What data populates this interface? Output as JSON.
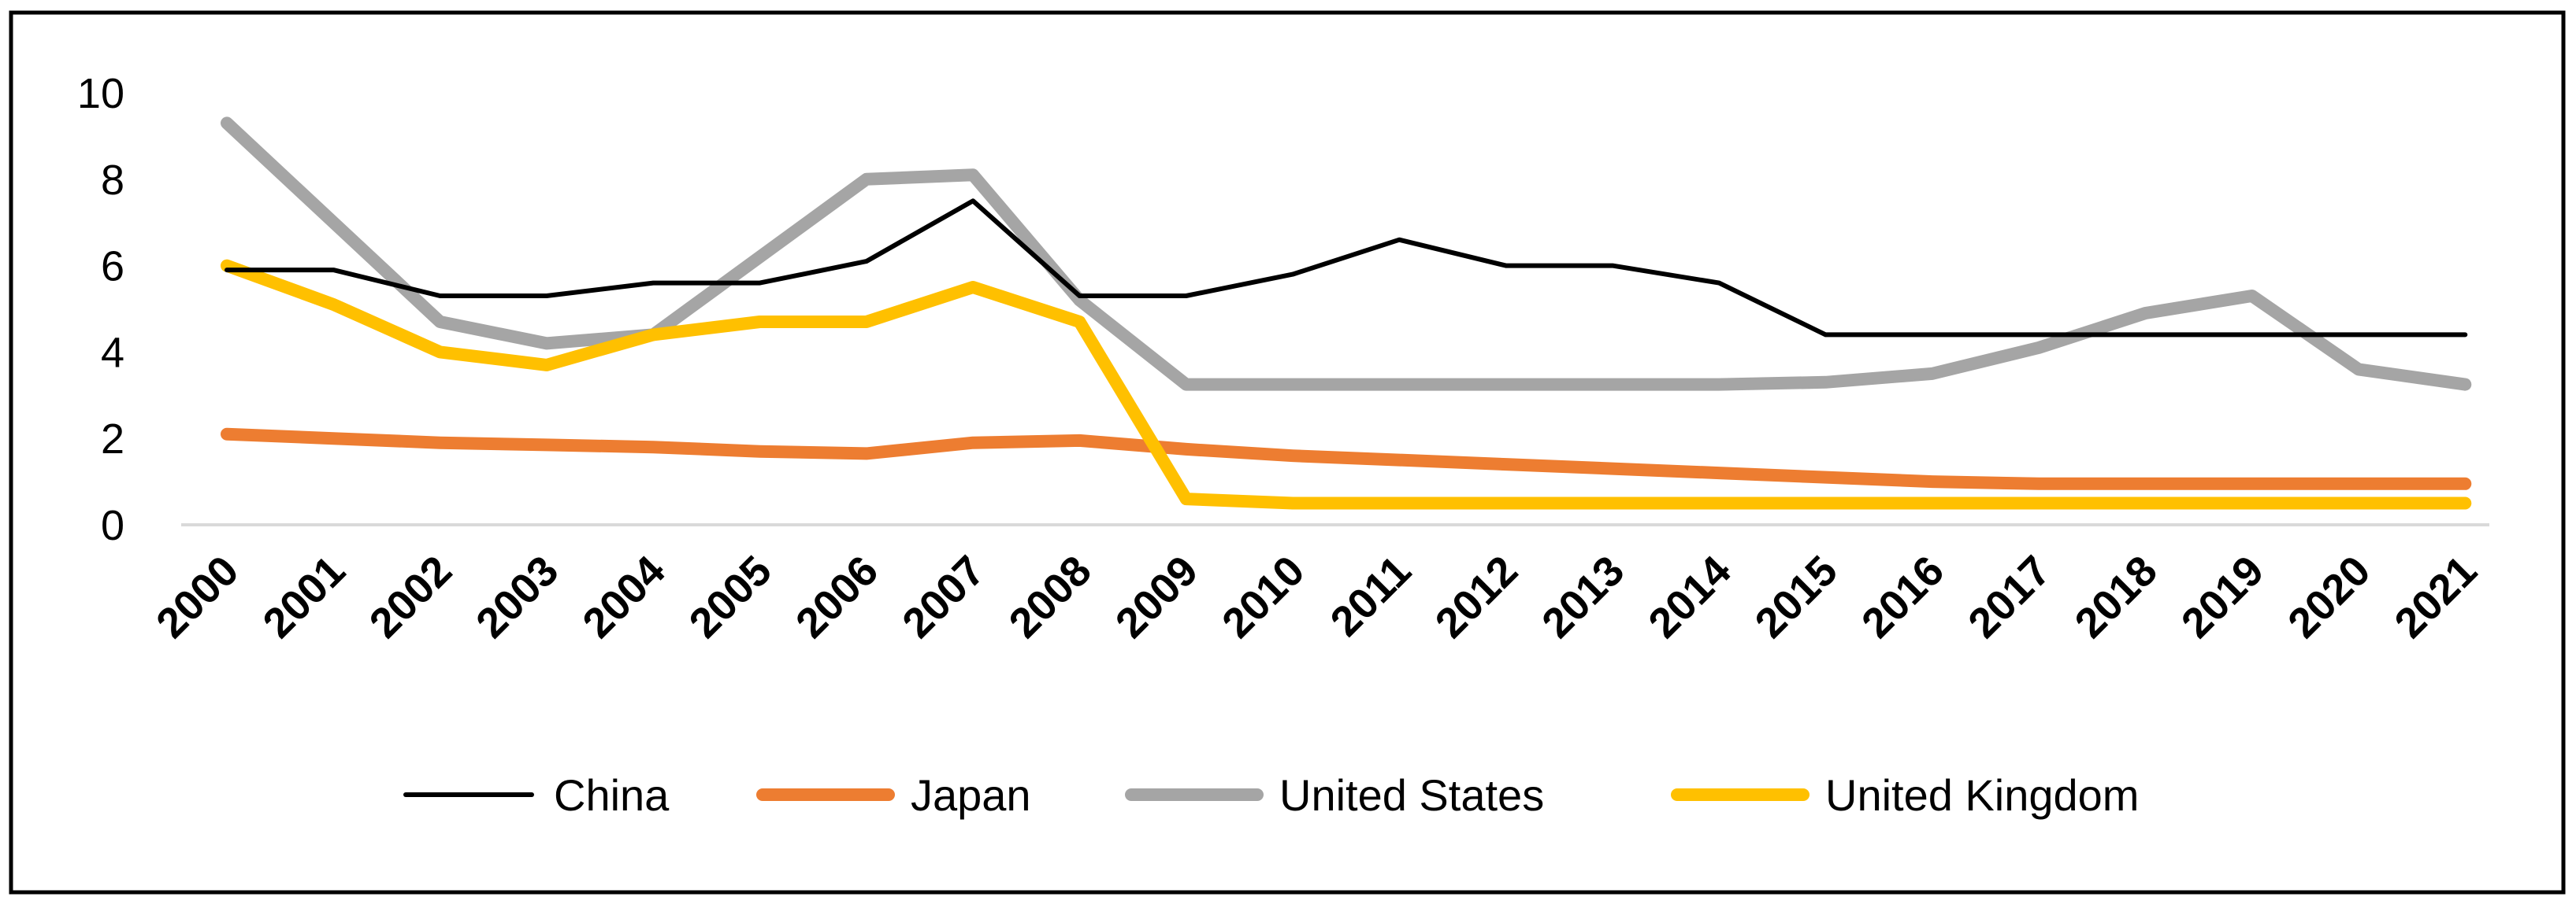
{
  "chart_data": {
    "type": "line",
    "title": "",
    "xlabel": "",
    "ylabel": "",
    "ylim": [
      0,
      10
    ],
    "yticks": [
      0,
      2,
      4,
      6,
      8,
      10
    ],
    "grid": false,
    "legend_position": "bottom",
    "categories": [
      "2000",
      "2001",
      "2002",
      "2003",
      "2004",
      "2005",
      "2006",
      "2007",
      "2008",
      "2009",
      "2010",
      "2011",
      "2012",
      "2013",
      "2014",
      "2015",
      "2016",
      "2017",
      "2018",
      "2019",
      "2020",
      "2021"
    ],
    "series": [
      {
        "name": "China",
        "color": "#000000",
        "values": [
          5.9,
          5.9,
          5.3,
          5.3,
          5.6,
          5.6,
          6.1,
          7.5,
          5.3,
          5.3,
          5.8,
          6.6,
          6.0,
          6.0,
          5.6,
          4.4,
          4.4,
          4.4,
          4.4,
          4.4,
          4.4,
          4.4
        ]
      },
      {
        "name": "Japan",
        "color": "#ED7D31",
        "values": [
          2.1,
          2.0,
          1.9,
          1.85,
          1.8,
          1.7,
          1.65,
          1.9,
          1.95,
          1.75,
          1.6,
          1.5,
          1.4,
          1.3,
          1.2,
          1.1,
          1.0,
          0.95,
          0.95,
          0.95,
          0.95,
          0.95
        ]
      },
      {
        "name": "United States",
        "color": "#A5A5A5",
        "values": [
          9.3,
          7.0,
          4.7,
          4.2,
          4.4,
          6.2,
          8.0,
          8.1,
          5.2,
          3.25,
          3.25,
          3.25,
          3.25,
          3.25,
          3.25,
          3.3,
          3.5,
          4.1,
          4.9,
          5.3,
          3.6,
          3.25
        ]
      },
      {
        "name": "United Kingdom",
        "color": "#FFC000",
        "values": [
          6.0,
          5.1,
          4.0,
          3.7,
          4.4,
          4.7,
          4.7,
          5.5,
          4.7,
          0.6,
          0.5,
          0.5,
          0.5,
          0.5,
          0.5,
          0.5,
          0.5,
          0.5,
          0.5,
          0.5,
          0.5,
          0.5
        ]
      }
    ]
  }
}
